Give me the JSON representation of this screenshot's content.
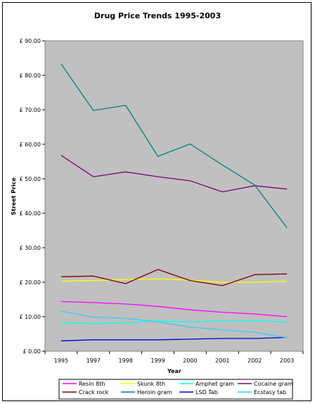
{
  "chart_data": {
    "type": "line",
    "title": "Drug Price Trends 1995-2003",
    "xlabel": "Year",
    "ylabel": "Street Price",
    "x": [
      "1995",
      "1997",
      "1998",
      "1999",
      "2000",
      "2001",
      "2002",
      "2003"
    ],
    "y_ticks": [
      "£ 0.00",
      "£ 10.00",
      "£ 20.00",
      "£ 30.00",
      "£ 40.00",
      "£ 50.00",
      "£ 60.00",
      "£ 70.00",
      "£ 80.00",
      "£ 90.00"
    ],
    "ylim": [
      0,
      90
    ],
    "grid": false,
    "plot_background": "#c0c0c0",
    "legend_position": "bottom",
    "series": [
      {
        "name": "Resin 8th",
        "color": "#ff00ff",
        "values": [
          14.4,
          14.1,
          13.7,
          13.0,
          12.0,
          11.3,
          10.8,
          10.0
        ]
      },
      {
        "name": "Skunk 8th",
        "color": "#ffff00",
        "values": [
          20.3,
          20.5,
          20.8,
          21.0,
          20.6,
          20.0,
          20.0,
          20.3
        ]
      },
      {
        "name": "Amphet gram",
        "color": "#00ffff",
        "values": [
          8.3,
          8.0,
          8.2,
          8.8,
          8.5,
          8.8,
          8.8,
          8.5
        ]
      },
      {
        "name": "Cocaine gram",
        "color": "#800080",
        "values": [
          56.8,
          50.6,
          52.0,
          50.6,
          49.4,
          46.2,
          48.0,
          47.0
        ]
      },
      {
        "name": "Crack rock",
        "color": "#800000",
        "values": [
          21.6,
          21.8,
          19.6,
          23.7,
          20.5,
          19.0,
          22.2,
          22.4
        ]
      },
      {
        "name": "Heroin gram",
        "color": "#008080",
        "values": [
          83.3,
          69.8,
          71.3,
          56.5,
          60.1,
          54.0,
          48.2,
          35.8
        ]
      },
      {
        "name": "LSD Tab",
        "color": "#0000cc",
        "values": [
          3.0,
          3.3,
          3.3,
          3.3,
          3.5,
          3.7,
          3.7,
          4.0
        ]
      },
      {
        "name": "Ecstasy tab",
        "color": "#33ccff",
        "values": [
          11.6,
          9.9,
          9.5,
          8.5,
          7.0,
          6.2,
          5.5,
          3.9
        ]
      }
    ]
  }
}
